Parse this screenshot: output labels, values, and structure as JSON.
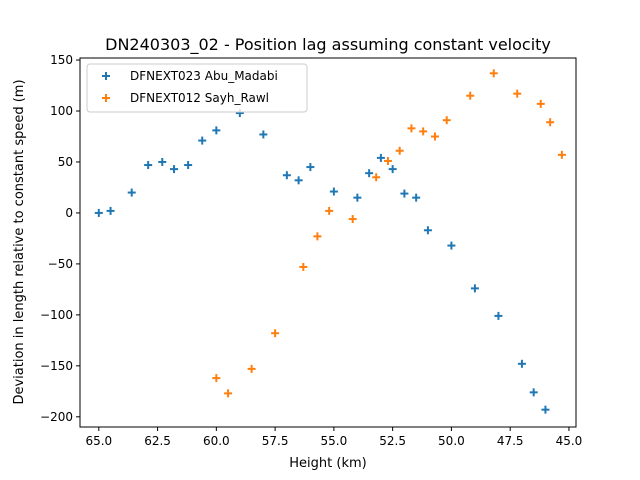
{
  "chart_data": {
    "type": "scatter",
    "title": "DN240303_02 - Position lag assuming constant velocity",
    "xlabel": "Height (km)",
    "ylabel": "Deviation in length relative to constant speed (m)",
    "xlim": [
      65.8,
      44.7
    ],
    "ylim": [
      -210,
      152
    ],
    "x_inverted": true,
    "xticks": [
      65.0,
      62.5,
      60.0,
      57.5,
      55.0,
      52.5,
      50.0,
      47.5,
      45.0
    ],
    "xtick_labels": [
      "65.0",
      "62.5",
      "60.0",
      "57.5",
      "55.0",
      "52.5",
      "50.0",
      "47.5",
      "45.0"
    ],
    "yticks": [
      150,
      100,
      50,
      0,
      -50,
      -100,
      -150,
      -200
    ],
    "ytick_labels": [
      "150",
      "100",
      "50",
      "0",
      "−50",
      "−100",
      "−150",
      "−200"
    ],
    "legend_position": "top-left",
    "grid": false,
    "marker": "plus",
    "series": [
      {
        "name": "DFNEXT023 Abu_Madabi",
        "color": "#1f77b4",
        "points": [
          [
            65.0,
            0
          ],
          [
            64.5,
            2
          ],
          [
            63.6,
            20
          ],
          [
            62.9,
            47
          ],
          [
            62.3,
            50
          ],
          [
            61.8,
            43
          ],
          [
            61.2,
            47
          ],
          [
            60.6,
            71
          ],
          [
            60.0,
            81
          ],
          [
            59.0,
            98
          ],
          [
            58.0,
            77
          ],
          [
            57.0,
            37
          ],
          [
            56.5,
            32
          ],
          [
            56.0,
            45
          ],
          [
            55.0,
            21
          ],
          [
            54.0,
            15
          ],
          [
            53.5,
            39
          ],
          [
            53.0,
            54
          ],
          [
            52.5,
            43
          ],
          [
            52.0,
            19
          ],
          [
            51.5,
            15
          ],
          [
            51.0,
            -17
          ],
          [
            50.0,
            -32
          ],
          [
            49.0,
            -74
          ],
          [
            48.0,
            -101
          ],
          [
            47.0,
            -148
          ],
          [
            46.5,
            -176
          ],
          [
            46.0,
            -193
          ]
        ]
      },
      {
        "name": "DFNEXT012 Sayh_Rawl",
        "color": "#ff7f0e",
        "points": [
          [
            60.0,
            -162
          ],
          [
            59.5,
            -177
          ],
          [
            58.5,
            -153
          ],
          [
            57.5,
            -118
          ],
          [
            56.3,
            -53
          ],
          [
            55.7,
            -23
          ],
          [
            55.2,
            2
          ],
          [
            54.2,
            -6
          ],
          [
            53.2,
            35
          ],
          [
            52.7,
            51
          ],
          [
            52.2,
            61
          ],
          [
            51.7,
            83
          ],
          [
            51.2,
            80
          ],
          [
            50.7,
            75
          ],
          [
            50.2,
            91
          ],
          [
            49.2,
            115
          ],
          [
            48.2,
            137
          ],
          [
            47.2,
            117
          ],
          [
            46.2,
            107
          ],
          [
            45.8,
            89
          ],
          [
            45.3,
            57
          ]
        ]
      }
    ]
  }
}
